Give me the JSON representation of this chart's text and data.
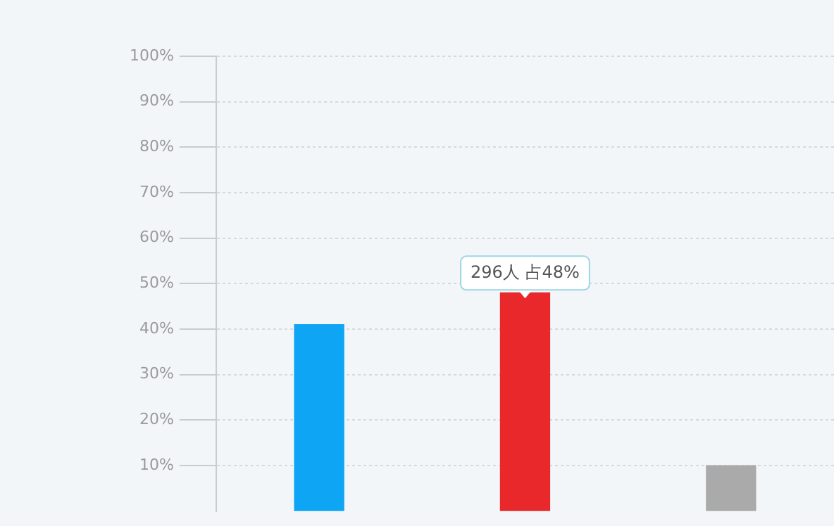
{
  "chart_data": {
    "type": "bar",
    "categories": [
      null,
      null,
      null
    ],
    "colors": [
      "#0ea5f5",
      "#e8282b",
      "#aaaaaa"
    ],
    "values": [
      41,
      48,
      10
    ],
    "ylim": [
      0,
      100
    ],
    "yticks": [
      {
        "value": 10,
        "label": "10%"
      },
      {
        "value": 20,
        "label": "20%"
      },
      {
        "value": 30,
        "label": "30%"
      },
      {
        "value": 40,
        "label": "40%"
      },
      {
        "value": 50,
        "label": "50%"
      },
      {
        "value": 60,
        "label": "60%"
      },
      {
        "value": 70,
        "label": "70%"
      },
      {
        "value": 80,
        "label": "80%"
      },
      {
        "value": 90,
        "label": "90%"
      },
      {
        "value": 100,
        "label": "100%"
      }
    ],
    "grid": "y",
    "annotations": [
      {
        "text": "296人 占48%",
        "y": 48
      }
    ]
  }
}
